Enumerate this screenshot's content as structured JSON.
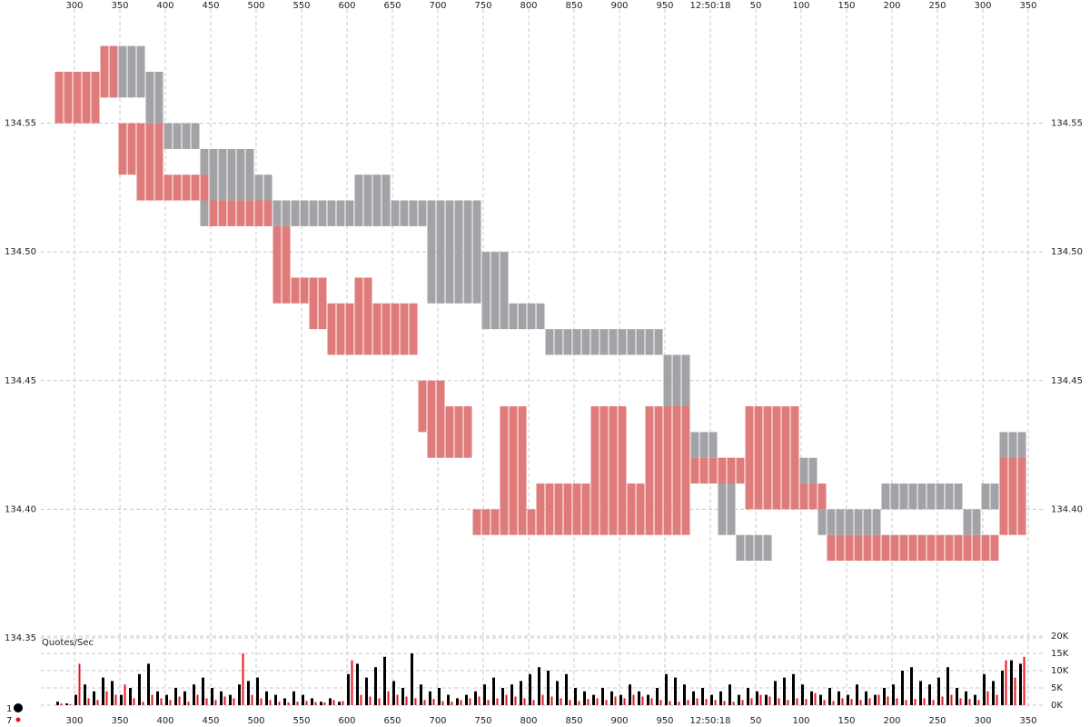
{
  "chart_data": {
    "type": "range",
    "x": [
      283,
      293,
      303,
      313,
      323,
      333,
      343,
      353,
      363,
      373,
      383,
      393,
      403,
      413,
      423,
      433,
      443,
      453,
      463,
      473,
      483,
      493,
      503,
      513,
      523,
      533,
      543,
      553,
      563,
      573,
      583,
      593,
      603,
      613,
      623,
      633,
      643,
      653,
      663,
      673,
      683,
      693,
      703,
      713,
      723,
      733,
      743,
      753,
      763,
      773,
      783,
      793,
      803,
      813,
      823,
      833,
      843,
      853,
      863,
      873,
      883,
      893,
      903,
      913,
      923,
      933,
      943,
      953,
      963,
      973,
      983,
      993,
      1003,
      1013,
      1023,
      1033,
      1043,
      1053,
      1063,
      1073,
      1083,
      1093,
      1103,
      1113,
      1123,
      1133,
      1143,
      1153,
      1163,
      1173,
      1183,
      1193,
      1203,
      1213,
      1223,
      1233,
      1243,
      1253,
      1263,
      1273,
      1283,
      1293,
      1303,
      1313,
      1323,
      1333,
      1343
    ],
    "xlim": [
      263,
      1366
    ],
    "xticks": [
      300,
      350,
      400,
      450,
      500,
      550,
      600,
      650,
      700,
      750,
      800,
      850,
      900,
      950,
      {
        "value": 1000,
        "label": "12:50:18"
      },
      {
        "value": 1050,
        "label": "50"
      },
      {
        "value": 1100,
        "label": "100"
      },
      {
        "value": 1150,
        "label": "150"
      },
      {
        "value": 1200,
        "label": "200"
      },
      {
        "value": 1250,
        "label": "250"
      },
      {
        "value": 1300,
        "label": "300"
      },
      {
        "value": 1350,
        "label": "350"
      }
    ],
    "ylim": [
      134.35,
      134.6
    ],
    "yticks": [
      134.35,
      {
        "value": 134.4,
        "label": "134.40"
      },
      134.45,
      {
        "value": 134.5,
        "label": "134.50"
      },
      134.55
    ],
    "y2lim": [
      134.35,
      134.6
    ],
    "y2ticks": [
      {
        "value": 134.4,
        "label": "134.40"
      },
      134.45,
      {
        "value": 134.5,
        "label": "134.50"
      },
      134.55
    ],
    "grid": true,
    "series": [
      {
        "color": "#a3a3a7",
        "low": [
          null,
          null,
          null,
          null,
          null,
          134.56,
          134.56,
          134.56,
          134.56,
          134.56,
          134.55,
          134.55,
          134.54,
          134.54,
          134.54,
          134.54,
          134.51,
          134.51,
          134.52,
          134.52,
          134.52,
          134.52,
          134.51,
          134.51,
          134.51,
          134.51,
          134.51,
          134.51,
          134.51,
          134.51,
          134.51,
          134.51,
          134.51,
          134.51,
          134.51,
          134.51,
          134.51,
          134.51,
          134.51,
          134.51,
          134.51,
          134.48,
          134.48,
          134.48,
          134.48,
          134.48,
          134.48,
          134.47,
          134.47,
          134.47,
          134.47,
          134.47,
          134.47,
          134.47,
          134.46,
          134.46,
          134.46,
          134.46,
          134.46,
          134.46,
          134.46,
          134.46,
          134.46,
          134.46,
          134.46,
          134.46,
          134.46,
          134.43,
          134.43,
          134.43,
          134.42,
          134.42,
          134.42,
          134.39,
          134.39,
          134.38,
          134.38,
          134.38,
          134.38,
          134.4,
          134.4,
          134.4,
          134.41,
          134.41,
          134.39,
          134.39,
          134.39,
          134.39,
          134.39,
          134.39,
          134.39,
          134.4,
          134.4,
          134.4,
          134.4,
          134.4,
          134.4,
          134.4,
          134.4,
          134.4,
          134.39,
          134.39,
          134.4,
          134.4,
          134.41,
          134.41,
          134.41
        ],
        "high": [
          null,
          null,
          null,
          null,
          null,
          134.58,
          134.58,
          134.58,
          134.58,
          134.58,
          134.57,
          134.57,
          134.55,
          134.55,
          134.55,
          134.55,
          134.54,
          134.54,
          134.54,
          134.54,
          134.54,
          134.54,
          134.53,
          134.53,
          134.52,
          134.52,
          134.52,
          134.52,
          134.52,
          134.52,
          134.52,
          134.52,
          134.52,
          134.53,
          134.53,
          134.53,
          134.53,
          134.52,
          134.52,
          134.52,
          134.52,
          134.52,
          134.52,
          134.52,
          134.52,
          134.52,
          134.52,
          134.5,
          134.5,
          134.5,
          134.48,
          134.48,
          134.48,
          134.48,
          134.47,
          134.47,
          134.47,
          134.47,
          134.47,
          134.47,
          134.47,
          134.47,
          134.47,
          134.47,
          134.47,
          134.47,
          134.47,
          134.46,
          134.46,
          134.46,
          134.43,
          134.43,
          134.43,
          134.42,
          134.42,
          134.39,
          134.39,
          134.39,
          134.39,
          134.41,
          134.41,
          134.41,
          134.42,
          134.42,
          134.4,
          134.4,
          134.4,
          134.4,
          134.4,
          134.4,
          134.4,
          134.41,
          134.41,
          134.41,
          134.41,
          134.41,
          134.41,
          134.41,
          134.41,
          134.41,
          134.4,
          134.4,
          134.41,
          134.41,
          134.43,
          134.43,
          134.43
        ]
      },
      {
        "color": "#e07b7b",
        "low": [
          134.55,
          134.55,
          134.55,
          134.55,
          134.55,
          134.56,
          134.56,
          134.53,
          134.53,
          134.52,
          134.52,
          134.52,
          134.52,
          134.52,
          134.52,
          134.52,
          134.52,
          134.51,
          134.51,
          134.51,
          134.51,
          134.51,
          134.51,
          134.51,
          134.48,
          134.48,
          134.48,
          134.48,
          134.47,
          134.47,
          134.46,
          134.46,
          134.46,
          134.46,
          134.46,
          134.46,
          134.46,
          134.46,
          134.46,
          134.46,
          134.43,
          134.42,
          134.42,
          134.42,
          134.42,
          134.42,
          134.39,
          134.39,
          134.39,
          134.39,
          134.39,
          134.39,
          134.39,
          134.39,
          134.39,
          134.39,
          134.39,
          134.39,
          134.39,
          134.39,
          134.39,
          134.39,
          134.39,
          134.39,
          134.39,
          134.39,
          134.39,
          134.39,
          134.39,
          134.39,
          134.41,
          134.41,
          134.41,
          134.41,
          134.41,
          134.41,
          134.4,
          134.4,
          134.4,
          134.4,
          134.4,
          134.4,
          134.4,
          134.4,
          134.4,
          134.38,
          134.38,
          134.38,
          134.38,
          134.38,
          134.38,
          134.38,
          134.38,
          134.38,
          134.38,
          134.38,
          134.38,
          134.38,
          134.38,
          134.38,
          134.38,
          134.38,
          134.38,
          134.38,
          134.39,
          134.39,
          134.39
        ],
        "high": [
          134.57,
          134.57,
          134.57,
          134.57,
          134.57,
          134.58,
          134.58,
          134.55,
          134.55,
          134.55,
          134.55,
          134.55,
          134.53,
          134.53,
          134.53,
          134.53,
          134.53,
          134.52,
          134.52,
          134.52,
          134.52,
          134.52,
          134.52,
          134.52,
          134.51,
          134.51,
          134.49,
          134.49,
          134.49,
          134.49,
          134.48,
          134.48,
          134.48,
          134.49,
          134.49,
          134.48,
          134.48,
          134.48,
          134.48,
          134.48,
          134.45,
          134.45,
          134.45,
          134.44,
          134.44,
          134.44,
          134.4,
          134.4,
          134.4,
          134.44,
          134.44,
          134.44,
          134.4,
          134.41,
          134.41,
          134.41,
          134.41,
          134.41,
          134.41,
          134.44,
          134.44,
          134.44,
          134.44,
          134.41,
          134.41,
          134.44,
          134.44,
          134.44,
          134.44,
          134.44,
          134.42,
          134.42,
          134.42,
          134.42,
          134.42,
          134.42,
          134.44,
          134.44,
          134.44,
          134.44,
          134.44,
          134.44,
          134.41,
          134.41,
          134.41,
          134.39,
          134.39,
          134.39,
          134.39,
          134.39,
          134.39,
          134.39,
          134.39,
          134.39,
          134.39,
          134.39,
          134.39,
          134.39,
          134.39,
          134.39,
          134.39,
          134.39,
          134.39,
          134.39,
          134.42,
          134.42,
          134.42
        ]
      }
    ],
    "volume": {
      "type": "bar",
      "title": "Quotes/Sec",
      "ylim": [
        0,
        20000
      ],
      "yticks": [
        {
          "value": 0,
          "label": "0K"
        },
        {
          "value": 5000,
          "label": "5K"
        },
        {
          "value": 10000,
          "label": "10K"
        },
        {
          "value": 15000,
          "label": "15K"
        },
        {
          "value": 20000,
          "label": "20K"
        }
      ],
      "legend": "bottom-left",
      "series": [
        {
          "name": "1",
          "color": "#000000",
          "values": [
            1000,
            500,
            3000,
            6000,
            4000,
            8000,
            7000,
            3000,
            5000,
            9000,
            12000,
            4000,
            3000,
            5000,
            4000,
            6000,
            8000,
            5000,
            4000,
            3000,
            6000,
            7000,
            8000,
            4000,
            3000,
            2000,
            4000,
            3000,
            2000,
            1000,
            2000,
            1000,
            9000,
            12000,
            8000,
            11000,
            14000,
            7000,
            5000,
            15000,
            6000,
            4000,
            5000,
            3000,
            2000,
            3000,
            4000,
            6000,
            8000,
            5000,
            6000,
            7000,
            9000,
            11000,
            10000,
            7000,
            9000,
            5000,
            4000,
            3000,
            5000,
            4000,
            3000,
            6000,
            4000,
            3000,
            5000,
            9000,
            8000,
            6000,
            4000,
            5000,
            3000,
            4000,
            6000,
            3000,
            5000,
            4000,
            3000,
            7000,
            8000,
            9000,
            6000,
            4000,
            3000,
            5000,
            4000,
            3000,
            6000,
            4000,
            3000,
            5000,
            6000,
            10000,
            11000,
            7000,
            6000,
            8000,
            11000,
            5000,
            4000,
            3000,
            9000,
            7000,
            10000,
            13000,
            12000
          ]
        },
        {
          "name": "7",
          "color": "#e8141c",
          "values": [
            500,
            300,
            12000,
            2000,
            1500,
            4000,
            3000,
            6000,
            2000,
            1000,
            3000,
            2000,
            1500,
            2500,
            1000,
            3000,
            2000,
            1500,
            2500,
            2000,
            15000,
            3000,
            2000,
            1500,
            1000,
            800,
            1000,
            1200,
            900,
            800,
            1500,
            1200,
            13000,
            3000,
            2500,
            2000,
            4000,
            3000,
            2500,
            2000,
            1500,
            1800,
            1200,
            1000,
            1500,
            2000,
            2500,
            1500,
            2000,
            3000,
            2500,
            2000,
            1500,
            3000,
            2500,
            2000,
            1500,
            1200,
            1800,
            2000,
            1500,
            2500,
            2000,
            3000,
            2500,
            2000,
            1500,
            1200,
            1000,
            1500,
            2000,
            1800,
            1500,
            1200,
            1000,
            1500,
            2000,
            3000,
            2500,
            2000,
            1500,
            2000,
            1800,
            3500,
            1500,
            1200,
            2000,
            1800,
            1500,
            2000,
            3000,
            2500,
            2000,
            1500,
            1800,
            2000,
            1500,
            2500,
            3000,
            2000,
            1800,
            1500,
            4000,
            3000,
            13000,
            8000,
            14000
          ]
        }
      ]
    }
  }
}
